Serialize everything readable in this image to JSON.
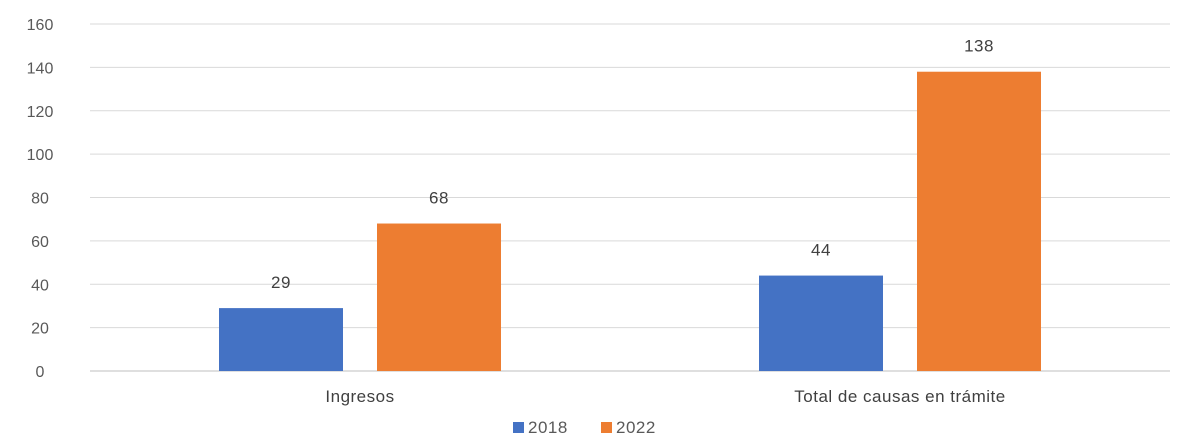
{
  "chart_data": {
    "type": "bar",
    "categories": [
      "Ingresos",
      "Total de causas en trámite"
    ],
    "series": [
      {
        "name": "2018",
        "values": [
          29,
          44
        ],
        "color": "#4472c4"
      },
      {
        "name": "2022",
        "values": [
          68,
          138
        ],
        "color": "#ed7d31"
      }
    ],
    "yticks": [
      "0",
      "20",
      "40",
      "60",
      "80",
      "100",
      "120",
      "140",
      "160"
    ],
    "ylim": [
      0,
      160
    ],
    "grid": true,
    "legend_position": "bottom-center",
    "data_labels": true
  }
}
